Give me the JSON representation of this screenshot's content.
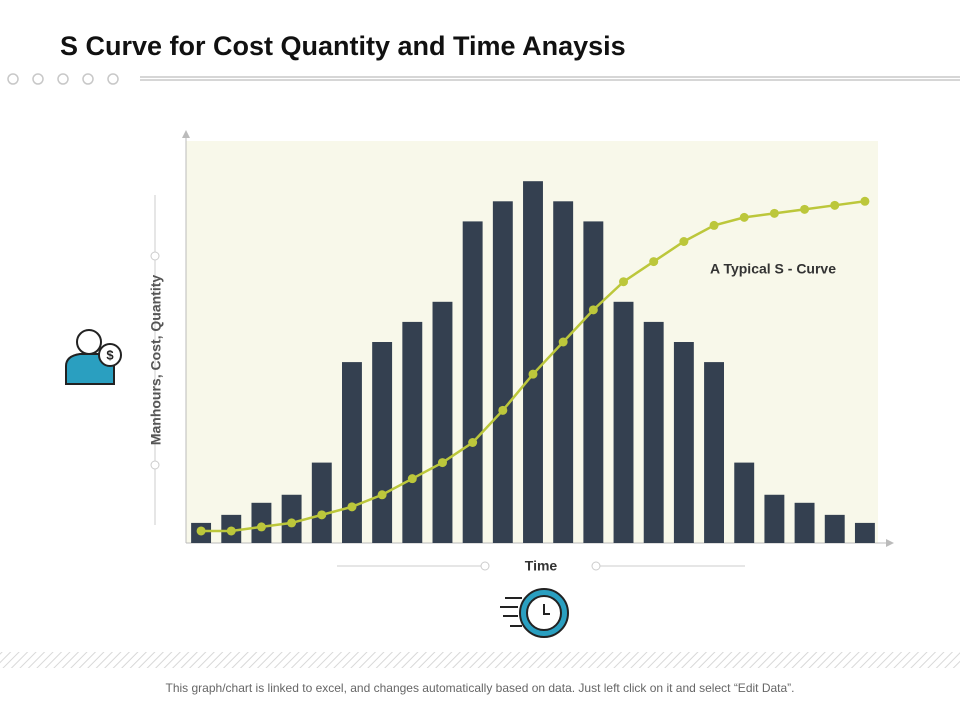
{
  "title": "S Curve for Cost Quantity and Time Anaysis",
  "footer": "This graph/chart is linked to excel, and changes automatically based on data. Just left click on it and select “Edit Data”.",
  "chart_data": {
    "type": "bar",
    "y_label": "Manhours, Cost, Quantity",
    "x_label": "Time",
    "annotation": "A Typical S - Curve",
    "categories": [
      null,
      null,
      null,
      null,
      null,
      null,
      null,
      null,
      null,
      null,
      null,
      null,
      null,
      null,
      null,
      null,
      null,
      null,
      null,
      null,
      null,
      null,
      null
    ],
    "ylim": [
      0,
      100
    ],
    "series": [
      {
        "type": "bar",
        "color": "#344050",
        "values": [
          5,
          7,
          10,
          12,
          20,
          45,
          50,
          55,
          60,
          80,
          85,
          90,
          85,
          80,
          60,
          55,
          50,
          45,
          20,
          12,
          10,
          7,
          5
        ]
      },
      {
        "type": "line",
        "color": "#bcc73b",
        "values": [
          3,
          3,
          4,
          5,
          7,
          9,
          12,
          16,
          20,
          25,
          33,
          42,
          50,
          58,
          65,
          70,
          75,
          79,
          81,
          82,
          83,
          84,
          85
        ]
      }
    ]
  }
}
